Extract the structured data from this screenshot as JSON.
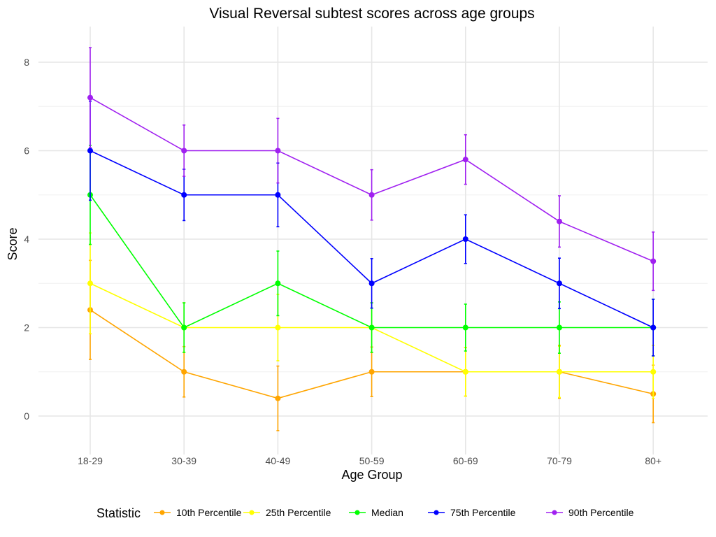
{
  "chart_data": {
    "type": "line",
    "title": "Visual Reversal subtest scores across age groups",
    "xlabel": "Age Group",
    "ylabel": "Score",
    "categories": [
      "18-29",
      "30-39",
      "40-49",
      "50-59",
      "60-69",
      "70-79",
      "80+"
    ],
    "ylim": [
      -0.87,
      8.8
    ],
    "yticks": [
      0,
      2,
      4,
      6,
      8
    ],
    "grid": true,
    "legend": {
      "title": "Statistic",
      "placement": "bottom"
    },
    "series": [
      {
        "name": "10th Percentile",
        "color": "#FFA500",
        "values": [
          2.4,
          1,
          0.4,
          1,
          1,
          1,
          0.5
        ],
        "error": [
          1.12,
          0.57,
          0.73,
          0.56,
          0.55,
          0.6,
          0.65
        ]
      },
      {
        "name": "25th Percentile",
        "color": "#FFFF00",
        "values": [
          3,
          2,
          2,
          2,
          1,
          1,
          1
        ],
        "error": [
          1.14,
          0.56,
          0.75,
          0.56,
          0.55,
          0.58,
          0.6
        ]
      },
      {
        "name": "Median",
        "color": "#00FF00",
        "values": [
          5,
          2,
          3,
          2,
          2,
          2,
          2
        ],
        "error": [
          1.12,
          0.56,
          0.73,
          0.56,
          0.53,
          0.58,
          0.64
        ]
      },
      {
        "name": "75th Percentile",
        "color": "#0000FF",
        "values": [
          6,
          5,
          5,
          3,
          4,
          3,
          2
        ],
        "error": [
          1.12,
          0.58,
          0.72,
          0.56,
          0.55,
          0.57,
          0.64
        ]
      },
      {
        "name": "90th Percentile",
        "color": "#A020F0",
        "values": [
          7.2,
          6,
          6,
          5,
          5.8,
          4.4,
          3.5
        ],
        "error": [
          1.13,
          0.58,
          0.73,
          0.57,
          0.56,
          0.58,
          0.66
        ]
      }
    ]
  }
}
